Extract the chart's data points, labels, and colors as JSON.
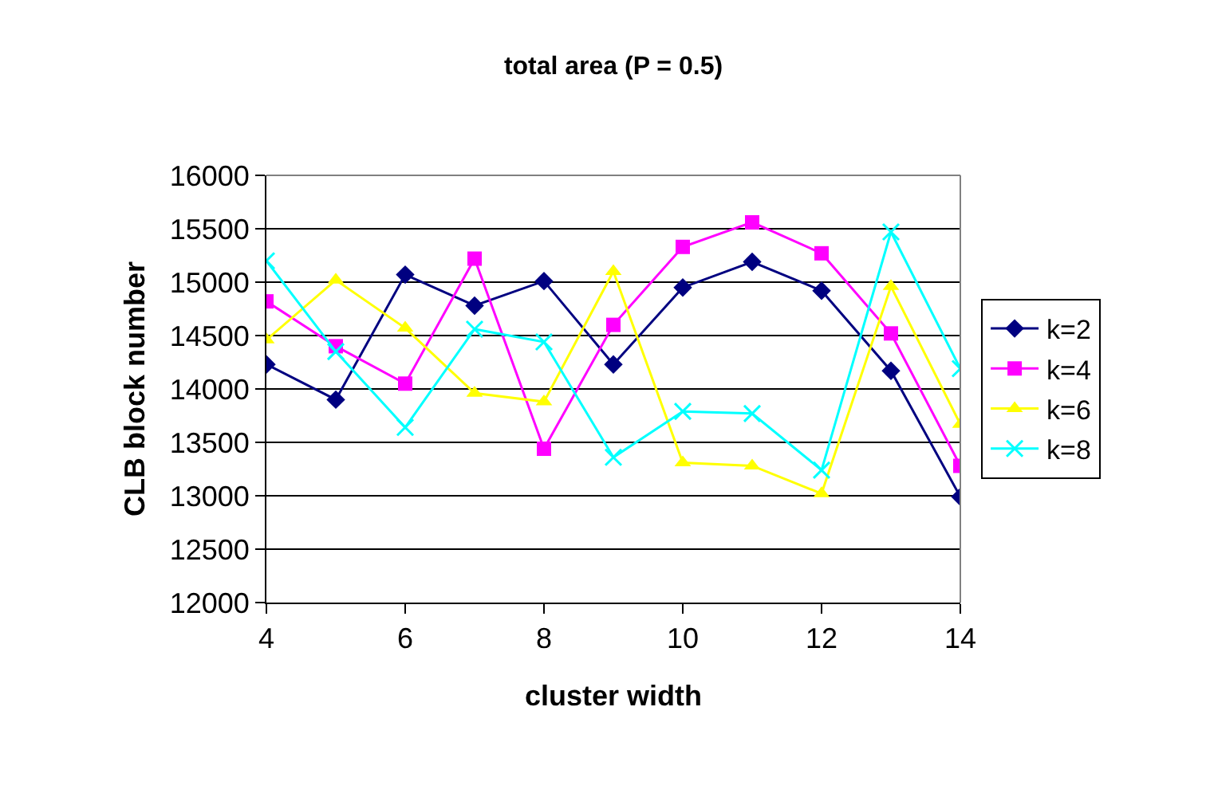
{
  "chart_data": {
    "type": "line",
    "title": "total area (P = 0.5)",
    "xlabel": "cluster width",
    "ylabel": "CLB block number",
    "x": [
      4,
      5,
      6,
      7,
      8,
      9,
      10,
      11,
      12,
      13,
      14
    ],
    "series": [
      {
        "name": "k=2",
        "color": "#000080",
        "marker": "diamond",
        "values": [
          14230,
          13900,
          15070,
          14780,
          15010,
          14230,
          14950,
          15190,
          14920,
          14170,
          12990
        ]
      },
      {
        "name": "k=4",
        "color": "#ff00ff",
        "marker": "square",
        "values": [
          14820,
          14400,
          14050,
          15220,
          13440,
          14600,
          15330,
          15560,
          15270,
          14520,
          13280
        ]
      },
      {
        "name": "k=6",
        "color": "#ffff00",
        "marker": "triangle",
        "values": [
          14460,
          15020,
          14570,
          13960,
          13880,
          15100,
          13310,
          13280,
          13020,
          14960,
          13670
        ]
      },
      {
        "name": "k=8",
        "color": "#00ffff",
        "marker": "cross",
        "values": [
          15200,
          14350,
          13640,
          14560,
          14440,
          13360,
          13790,
          13770,
          13240,
          15470,
          14190
        ]
      }
    ],
    "xlim": [
      4,
      14
    ],
    "xticks": [
      4,
      6,
      8,
      10,
      12,
      14
    ],
    "ylim": [
      12000,
      16000
    ],
    "yticks": [
      12000,
      12500,
      13000,
      13500,
      14000,
      14500,
      15000,
      15500,
      16000
    ],
    "grid": "y",
    "legend": "right",
    "line_style": "solid"
  }
}
